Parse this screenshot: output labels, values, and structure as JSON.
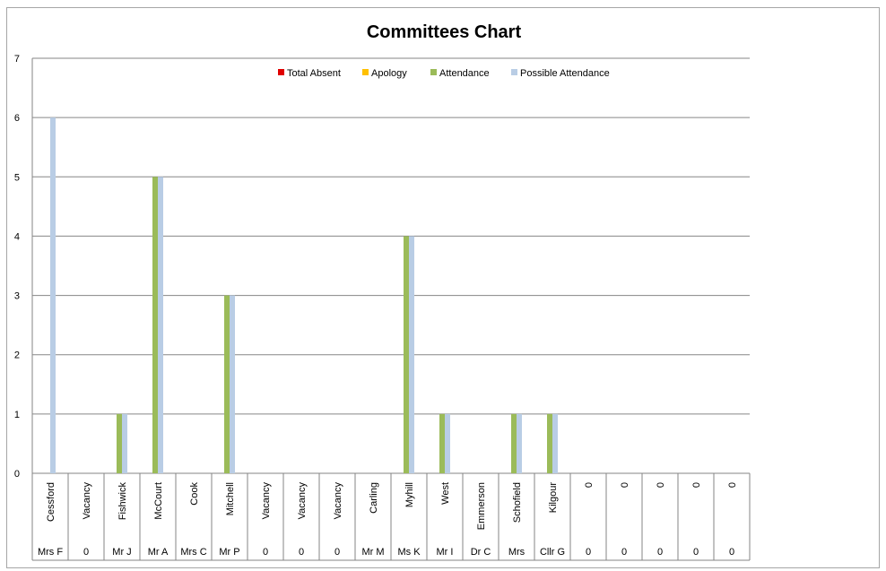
{
  "chart_data": {
    "type": "bar",
    "title": "Committees Chart",
    "xlabel": "",
    "ylabel": "",
    "ylim": [
      0,
      7
    ],
    "yticks": [
      "0",
      "1",
      "2",
      "3",
      "4",
      "5",
      "6",
      "7"
    ],
    "grid": true,
    "legend_position": "top-center",
    "categories": [
      {
        "name": "Cessford",
        "prefix": "Mrs F"
      },
      {
        "name": "Vacancy",
        "prefix": "0"
      },
      {
        "name": "Fishwick",
        "prefix": "Mr J"
      },
      {
        "name": "McCourt",
        "prefix": "Mr A"
      },
      {
        "name": "Cook",
        "prefix": "Mrs C"
      },
      {
        "name": "Mitchell",
        "prefix": "Mr P"
      },
      {
        "name": "Vacancy",
        "prefix": "0"
      },
      {
        "name": "Vacancy",
        "prefix": "0"
      },
      {
        "name": "Vacancy",
        "prefix": "0"
      },
      {
        "name": "Carling",
        "prefix": "Mr M"
      },
      {
        "name": "Myhill",
        "prefix": "Ms K"
      },
      {
        "name": "West",
        "prefix": "Mr I"
      },
      {
        "name": "Emmerson",
        "prefix": "Dr C"
      },
      {
        "name": "Schofield",
        "prefix": "Mrs"
      },
      {
        "name": "Kilgour",
        "prefix": "Cllr G"
      },
      {
        "name": "0",
        "prefix": "0"
      },
      {
        "name": "0",
        "prefix": "0"
      },
      {
        "name": "0",
        "prefix": "0"
      },
      {
        "name": "0",
        "prefix": "0"
      },
      {
        "name": "0",
        "prefix": "0"
      }
    ],
    "series": [
      {
        "name": "Total Absent",
        "color": "#e00000",
        "values": [
          0,
          0,
          0,
          0,
          0,
          0,
          0,
          0,
          0,
          0,
          0,
          0,
          0,
          0,
          0,
          0,
          0,
          0,
          0,
          0
        ]
      },
      {
        "name": "Apology",
        "color": "#ffc000",
        "values": [
          0,
          0,
          0,
          0,
          0,
          0,
          0,
          0,
          0,
          0,
          0,
          0,
          0,
          0,
          0,
          0,
          0,
          0,
          0,
          0
        ]
      },
      {
        "name": "Attendance",
        "color": "#9bbb59",
        "values": [
          0,
          0,
          1,
          5,
          0,
          3,
          0,
          0,
          0,
          0,
          4,
          1,
          0,
          1,
          1,
          0,
          0,
          0,
          0,
          0
        ]
      },
      {
        "name": "Possible Attendance",
        "color": "#b9cde5",
        "values": [
          6,
          0,
          1,
          5,
          0,
          3,
          0,
          0,
          0,
          0,
          4,
          1,
          0,
          1,
          1,
          0,
          0,
          0,
          0,
          0
        ]
      }
    ]
  }
}
